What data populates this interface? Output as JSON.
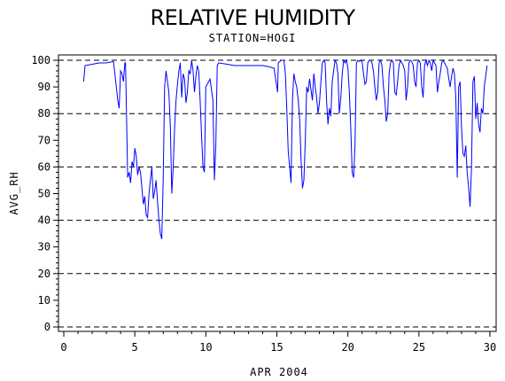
{
  "chart_data": {
    "type": "line",
    "title": "RELATIVE HUMIDITY",
    "subtitle": "STATION=HOGI",
    "xlabel": "APR 2004",
    "ylabel": "AVG_RH",
    "xlim": [
      0,
      30
    ],
    "ylim": [
      0,
      100
    ],
    "x_ticks": [
      0,
      5,
      10,
      15,
      20,
      25,
      30
    ],
    "y_ticks": [
      0,
      10,
      20,
      30,
      40,
      50,
      60,
      70,
      80,
      90,
      100
    ],
    "reference_lines": [
      0,
      20,
      40,
      60,
      80,
      100
    ],
    "grid": "dashed horizontal reference lines",
    "legend": "none",
    "line_color": "#0000ff",
    "series": [
      {
        "points": [
          [
            1.4,
            92
          ],
          [
            1.5,
            98
          ],
          [
            2.0,
            98.5
          ],
          [
            2.5,
            99
          ],
          [
            3.0,
            99
          ],
          [
            3.5,
            99.5
          ],
          [
            3.7,
            90
          ],
          [
            3.8,
            85
          ],
          [
            3.9,
            82
          ],
          [
            4.0,
            96
          ],
          [
            4.1,
            95
          ],
          [
            4.2,
            92
          ],
          [
            4.3,
            99
          ],
          [
            4.35,
            99
          ],
          [
            4.4,
            85
          ],
          [
            4.5,
            56
          ],
          [
            4.6,
            58
          ],
          [
            4.7,
            54
          ],
          [
            4.8,
            62
          ],
          [
            4.9,
            60
          ],
          [
            5.0,
            67
          ],
          [
            5.1,
            64
          ],
          [
            5.2,
            57
          ],
          [
            5.3,
            60
          ],
          [
            5.4,
            58
          ],
          [
            5.5,
            52
          ],
          [
            5.6,
            46
          ],
          [
            5.7,
            49
          ],
          [
            5.8,
            42
          ],
          [
            5.9,
            41
          ],
          [
            6.0,
            50
          ],
          [
            6.1,
            55
          ],
          [
            6.2,
            60
          ],
          [
            6.3,
            48
          ],
          [
            6.4,
            51
          ],
          [
            6.5,
            55
          ],
          [
            6.6,
            47
          ],
          [
            6.7,
            40
          ],
          [
            6.8,
            35
          ],
          [
            6.9,
            33
          ],
          [
            7.0,
            55
          ],
          [
            7.1,
            90
          ],
          [
            7.2,
            96
          ],
          [
            7.3,
            92
          ],
          [
            7.4,
            88
          ],
          [
            7.5,
            75
          ],
          [
            7.6,
            50
          ],
          [
            7.7,
            60
          ],
          [
            7.8,
            75
          ],
          [
            7.9,
            85
          ],
          [
            8.0,
            91
          ],
          [
            8.1,
            96
          ],
          [
            8.2,
            99
          ],
          [
            8.3,
            86
          ],
          [
            8.4,
            95
          ],
          [
            8.5,
            93
          ],
          [
            8.6,
            84
          ],
          [
            8.7,
            88
          ],
          [
            8.8,
            96
          ],
          [
            8.9,
            95
          ],
          [
            9.0,
            100
          ],
          [
            9.1,
            96
          ],
          [
            9.2,
            88
          ],
          [
            9.3,
            94
          ],
          [
            9.4,
            98
          ],
          [
            9.5,
            96
          ],
          [
            9.6,
            85
          ],
          [
            9.7,
            72
          ],
          [
            9.8,
            60
          ],
          [
            9.9,
            58
          ],
          [
            10.0,
            90
          ],
          [
            10.3,
            93
          ],
          [
            10.5,
            85
          ],
          [
            10.6,
            55
          ],
          [
            10.7,
            68
          ],
          [
            10.8,
            98
          ],
          [
            10.9,
            99
          ],
          [
            11.5,
            98.5
          ],
          [
            12.0,
            98
          ],
          [
            13.0,
            98
          ],
          [
            14.0,
            98
          ],
          [
            14.5,
            97.5
          ],
          [
            14.8,
            97
          ],
          [
            15.0,
            90
          ],
          [
            15.05,
            88
          ],
          [
            15.1,
            99
          ],
          [
            15.3,
            100
          ],
          [
            15.5,
            100
          ],
          [
            15.6,
            95
          ],
          [
            15.7,
            82
          ],
          [
            15.8,
            66
          ],
          [
            15.9,
            60
          ],
          [
            16.0,
            54
          ],
          [
            16.1,
            85
          ],
          [
            16.2,
            95
          ],
          [
            16.3,
            92
          ],
          [
            16.4,
            90
          ],
          [
            16.5,
            85
          ],
          [
            16.6,
            78
          ],
          [
            16.7,
            63
          ],
          [
            16.8,
            52
          ],
          [
            16.9,
            55
          ],
          [
            17.0,
            70
          ],
          [
            17.1,
            90
          ],
          [
            17.2,
            88
          ],
          [
            17.3,
            93
          ],
          [
            17.4,
            89
          ],
          [
            17.5,
            85
          ],
          [
            17.6,
            95
          ],
          [
            17.7,
            90
          ],
          [
            17.8,
            86
          ],
          [
            17.9,
            80
          ],
          [
            18.0,
            84
          ],
          [
            18.1,
            92
          ],
          [
            18.2,
            99
          ],
          [
            18.3,
            100
          ],
          [
            18.4,
            99
          ],
          [
            18.5,
            85
          ],
          [
            18.6,
            76
          ],
          [
            18.7,
            82
          ],
          [
            18.8,
            79
          ],
          [
            18.9,
            92
          ],
          [
            19.0,
            96
          ],
          [
            19.1,
            100
          ],
          [
            19.2,
            99
          ],
          [
            19.3,
            95
          ],
          [
            19.4,
            80
          ],
          [
            19.5,
            86
          ],
          [
            19.6,
            95
          ],
          [
            19.7,
            100
          ],
          [
            19.8,
            99
          ],
          [
            19.9,
            100
          ],
          [
            20.0,
            97
          ],
          [
            20.1,
            88
          ],
          [
            20.2,
            75
          ],
          [
            20.3,
            58
          ],
          [
            20.4,
            56
          ],
          [
            20.5,
            68
          ],
          [
            20.6,
            99
          ],
          [
            20.7,
            100
          ],
          [
            20.8,
            99.5
          ],
          [
            20.9,
            100
          ],
          [
            21.0,
            99.5
          ],
          [
            21.1,
            95
          ],
          [
            21.2,
            91
          ],
          [
            21.3,
            92
          ],
          [
            21.4,
            99
          ],
          [
            21.5,
            100
          ],
          [
            21.6,
            100
          ],
          [
            21.7,
            99
          ],
          [
            21.8,
            96
          ],
          [
            21.9,
            90
          ],
          [
            22.0,
            85
          ],
          [
            22.1,
            88
          ],
          [
            22.2,
            99
          ],
          [
            22.3,
            100
          ],
          [
            22.4,
            98
          ],
          [
            22.5,
            90
          ],
          [
            22.6,
            85
          ],
          [
            22.7,
            77
          ],
          [
            22.8,
            80
          ],
          [
            22.9,
            95
          ],
          [
            23.0,
            99
          ],
          [
            23.1,
            100
          ],
          [
            23.2,
            99
          ],
          [
            23.3,
            88
          ],
          [
            23.4,
            87
          ],
          [
            23.5,
            92
          ],
          [
            23.6,
            98
          ],
          [
            23.7,
            100
          ],
          [
            23.8,
            99
          ],
          [
            23.9,
            98
          ],
          [
            24.0,
            96
          ],
          [
            24.1,
            85
          ],
          [
            24.2,
            90
          ],
          [
            24.3,
            99
          ],
          [
            24.4,
            100
          ],
          [
            24.5,
            99.5
          ],
          [
            24.6,
            98
          ],
          [
            24.7,
            92
          ],
          [
            24.8,
            90
          ],
          [
            24.9,
            99
          ],
          [
            25.0,
            100
          ],
          [
            25.1,
            99
          ],
          [
            25.2,
            90
          ],
          [
            25.3,
            86
          ],
          [
            25.4,
            98
          ],
          [
            25.5,
            100
          ],
          [
            25.6,
            98
          ],
          [
            25.7,
            100
          ],
          [
            25.8,
            99
          ],
          [
            25.9,
            96
          ],
          [
            26.0,
            100
          ],
          [
            26.1,
            99
          ],
          [
            26.2,
            98
          ],
          [
            26.3,
            88
          ],
          [
            26.4,
            92
          ],
          [
            26.5,
            95
          ],
          [
            26.6,
            99
          ],
          [
            26.7,
            100
          ],
          [
            26.8,
            99
          ],
          [
            26.9,
            98
          ],
          [
            27.0,
            97
          ],
          [
            27.1,
            93
          ],
          [
            27.2,
            90
          ],
          [
            27.3,
            94
          ],
          [
            27.4,
            97
          ],
          [
            27.5,
            95
          ],
          [
            27.6,
            86
          ],
          [
            27.7,
            56
          ],
          [
            27.8,
            90
          ],
          [
            27.9,
            92
          ],
          [
            28.0,
            75
          ],
          [
            28.1,
            65
          ],
          [
            28.2,
            64
          ],
          [
            28.3,
            68
          ],
          [
            28.4,
            58
          ],
          [
            28.5,
            52
          ],
          [
            28.6,
            45
          ],
          [
            28.7,
            60
          ],
          [
            28.8,
            92
          ],
          [
            28.9,
            94
          ],
          [
            29.0,
            78
          ],
          [
            29.1,
            84
          ],
          [
            29.2,
            76
          ],
          [
            29.3,
            73
          ],
          [
            29.4,
            82
          ],
          [
            29.5,
            80
          ],
          [
            29.6,
            90
          ],
          [
            29.7,
            94
          ],
          [
            29.8,
            98
          ]
        ]
      }
    ]
  }
}
